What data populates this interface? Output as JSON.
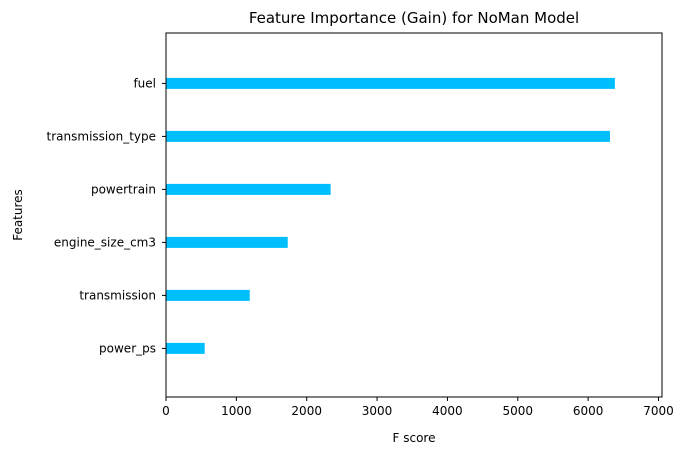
{
  "chart_data": {
    "type": "bar",
    "orientation": "horizontal",
    "title": "Feature Importance (Gain) for NoMan Model",
    "xlabel": "F score",
    "ylabel": "Features",
    "categories": [
      "fuel",
      "transmission_type",
      "powertrain",
      "engine_size_cm3",
      "transmission",
      "power_ps"
    ],
    "values": [
      6380,
      6310,
      2340,
      1730,
      1190,
      550
    ],
    "xlim": [
      0,
      7050
    ],
    "xticks": [
      0,
      1000,
      2000,
      3000,
      4000,
      5000,
      6000,
      7000
    ],
    "grid": false,
    "bar_color": "#00bfff"
  }
}
